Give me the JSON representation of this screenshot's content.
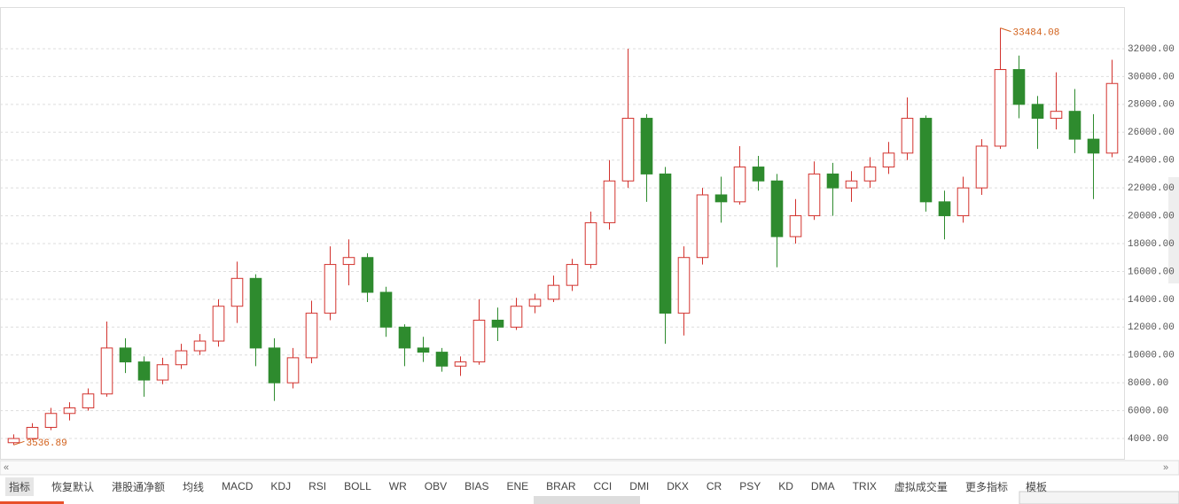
{
  "chart_data": {
    "type": "candlestick",
    "up_color": "#d2322d",
    "down_color": "#2e8b2e",
    "ylim": [
      2540,
      34860
    ],
    "yticks": [
      {
        "value": 4000,
        "label": "4000.00"
      },
      {
        "value": 6000,
        "label": "6000.00"
      },
      {
        "value": 8000,
        "label": "8000.00"
      },
      {
        "value": 10000,
        "label": "10000.00"
      },
      {
        "value": 12000,
        "label": "12000.00"
      },
      {
        "value": 14000,
        "label": "14000.00"
      },
      {
        "value": 16000,
        "label": "16000.00"
      },
      {
        "value": 18000,
        "label": "18000.00"
      },
      {
        "value": 20000,
        "label": "20000.00"
      },
      {
        "value": 22000,
        "label": "22000.00"
      },
      {
        "value": 24000,
        "label": "24000.00"
      },
      {
        "value": 26000,
        "label": "26000.00"
      },
      {
        "value": 28000,
        "label": "28000.00"
      },
      {
        "value": 30000,
        "label": "30000.00"
      },
      {
        "value": 32000,
        "label": "32000.00"
      }
    ],
    "grid": true,
    "candles": [
      [
        3700,
        4300,
        3536.89,
        4000
      ],
      [
        4000,
        5100,
        3900,
        4800
      ],
      [
        4800,
        6200,
        4600,
        5800
      ],
      [
        5800,
        6600,
        5300,
        6200
      ],
      [
        6200,
        7600,
        6000,
        7200
      ],
      [
        7200,
        12400,
        7000,
        10500
      ],
      [
        10500,
        11200,
        8700,
        9500
      ],
      [
        9500,
        9900,
        7000,
        8200
      ],
      [
        8200,
        9800,
        7900,
        9300
      ],
      [
        9300,
        10800,
        9000,
        10300
      ],
      [
        10300,
        11500,
        10000,
        11000
      ],
      [
        11000,
        14000,
        10600,
        13500
      ],
      [
        13500,
        16700,
        12300,
        15500
      ],
      [
        15500,
        15800,
        9200,
        10500
      ],
      [
        10500,
        11200,
        6700,
        8000
      ],
      [
        8000,
        10500,
        7600,
        9800
      ],
      [
        9800,
        13900,
        9400,
        13000
      ],
      [
        13000,
        17800,
        12500,
        16500
      ],
      [
        16500,
        18300,
        15000,
        17000
      ],
      [
        17000,
        17300,
        13800,
        14500
      ],
      [
        14500,
        14900,
        11300,
        12000
      ],
      [
        12000,
        12200,
        9200,
        10500
      ],
      [
        10500,
        11300,
        9500,
        10200
      ],
      [
        10200,
        10500,
        8800,
        9200
      ],
      [
        9200,
        9900,
        8500,
        9500
      ],
      [
        9500,
        14000,
        9300,
        12500
      ],
      [
        12500,
        13400,
        11000,
        12000
      ],
      [
        12000,
        14100,
        11800,
        13500
      ],
      [
        13500,
        14400,
        13000,
        14000
      ],
      [
        14000,
        15700,
        13800,
        15000
      ],
      [
        15000,
        16900,
        14600,
        16500
      ],
      [
        16500,
        20300,
        16200,
        19500
      ],
      [
        19500,
        24000,
        19000,
        22500
      ],
      [
        22500,
        32000,
        22000,
        27000
      ],
      [
        27000,
        27300,
        21000,
        23000
      ],
      [
        23000,
        23500,
        10800,
        13000
      ],
      [
        13000,
        17800,
        11400,
        17000
      ],
      [
        17000,
        22000,
        16500,
        21500
      ],
      [
        21500,
        22800,
        19500,
        21000
      ],
      [
        21000,
        25000,
        20800,
        23500
      ],
      [
        23500,
        24300,
        21800,
        22500
      ],
      [
        22500,
        23000,
        16300,
        18500
      ],
      [
        18500,
        21200,
        18000,
        20000
      ],
      [
        20000,
        23900,
        19700,
        23000
      ],
      [
        23000,
        23800,
        20000,
        22000
      ],
      [
        22000,
        23200,
        21000,
        22500
      ],
      [
        22500,
        24200,
        22000,
        23500
      ],
      [
        23500,
        25300,
        23000,
        24500
      ],
      [
        24500,
        28500,
        24000,
        27000
      ],
      [
        27000,
        27200,
        20300,
        21000
      ],
      [
        21000,
        21800,
        18300,
        20000
      ],
      [
        20000,
        22800,
        19500,
        22000
      ],
      [
        22000,
        25500,
        21500,
        25000
      ],
      [
        25000,
        33484.08,
        24800,
        30500
      ],
      [
        30500,
        31500,
        27000,
        28000
      ],
      [
        28000,
        28600,
        24800,
        27000
      ],
      [
        27000,
        30300,
        26200,
        27500
      ],
      [
        27500,
        29100,
        24500,
        25500
      ],
      [
        25500,
        27300,
        21200,
        24500
      ],
      [
        24500,
        31200,
        24200,
        29500
      ]
    ]
  },
  "tabs": [
    "指标",
    "恢复默认",
    "港股通净额",
    "均线",
    "MACD",
    "KDJ",
    "RSI",
    "BOLL",
    "WR",
    "OBV",
    "BIAS",
    "ENE",
    "BRAR",
    "CCI",
    "DMI",
    "DKX",
    "CR",
    "PSY",
    "KD",
    "DMA",
    "TRIX",
    "虚拟成交量",
    "更多指标",
    "模板"
  ]
}
